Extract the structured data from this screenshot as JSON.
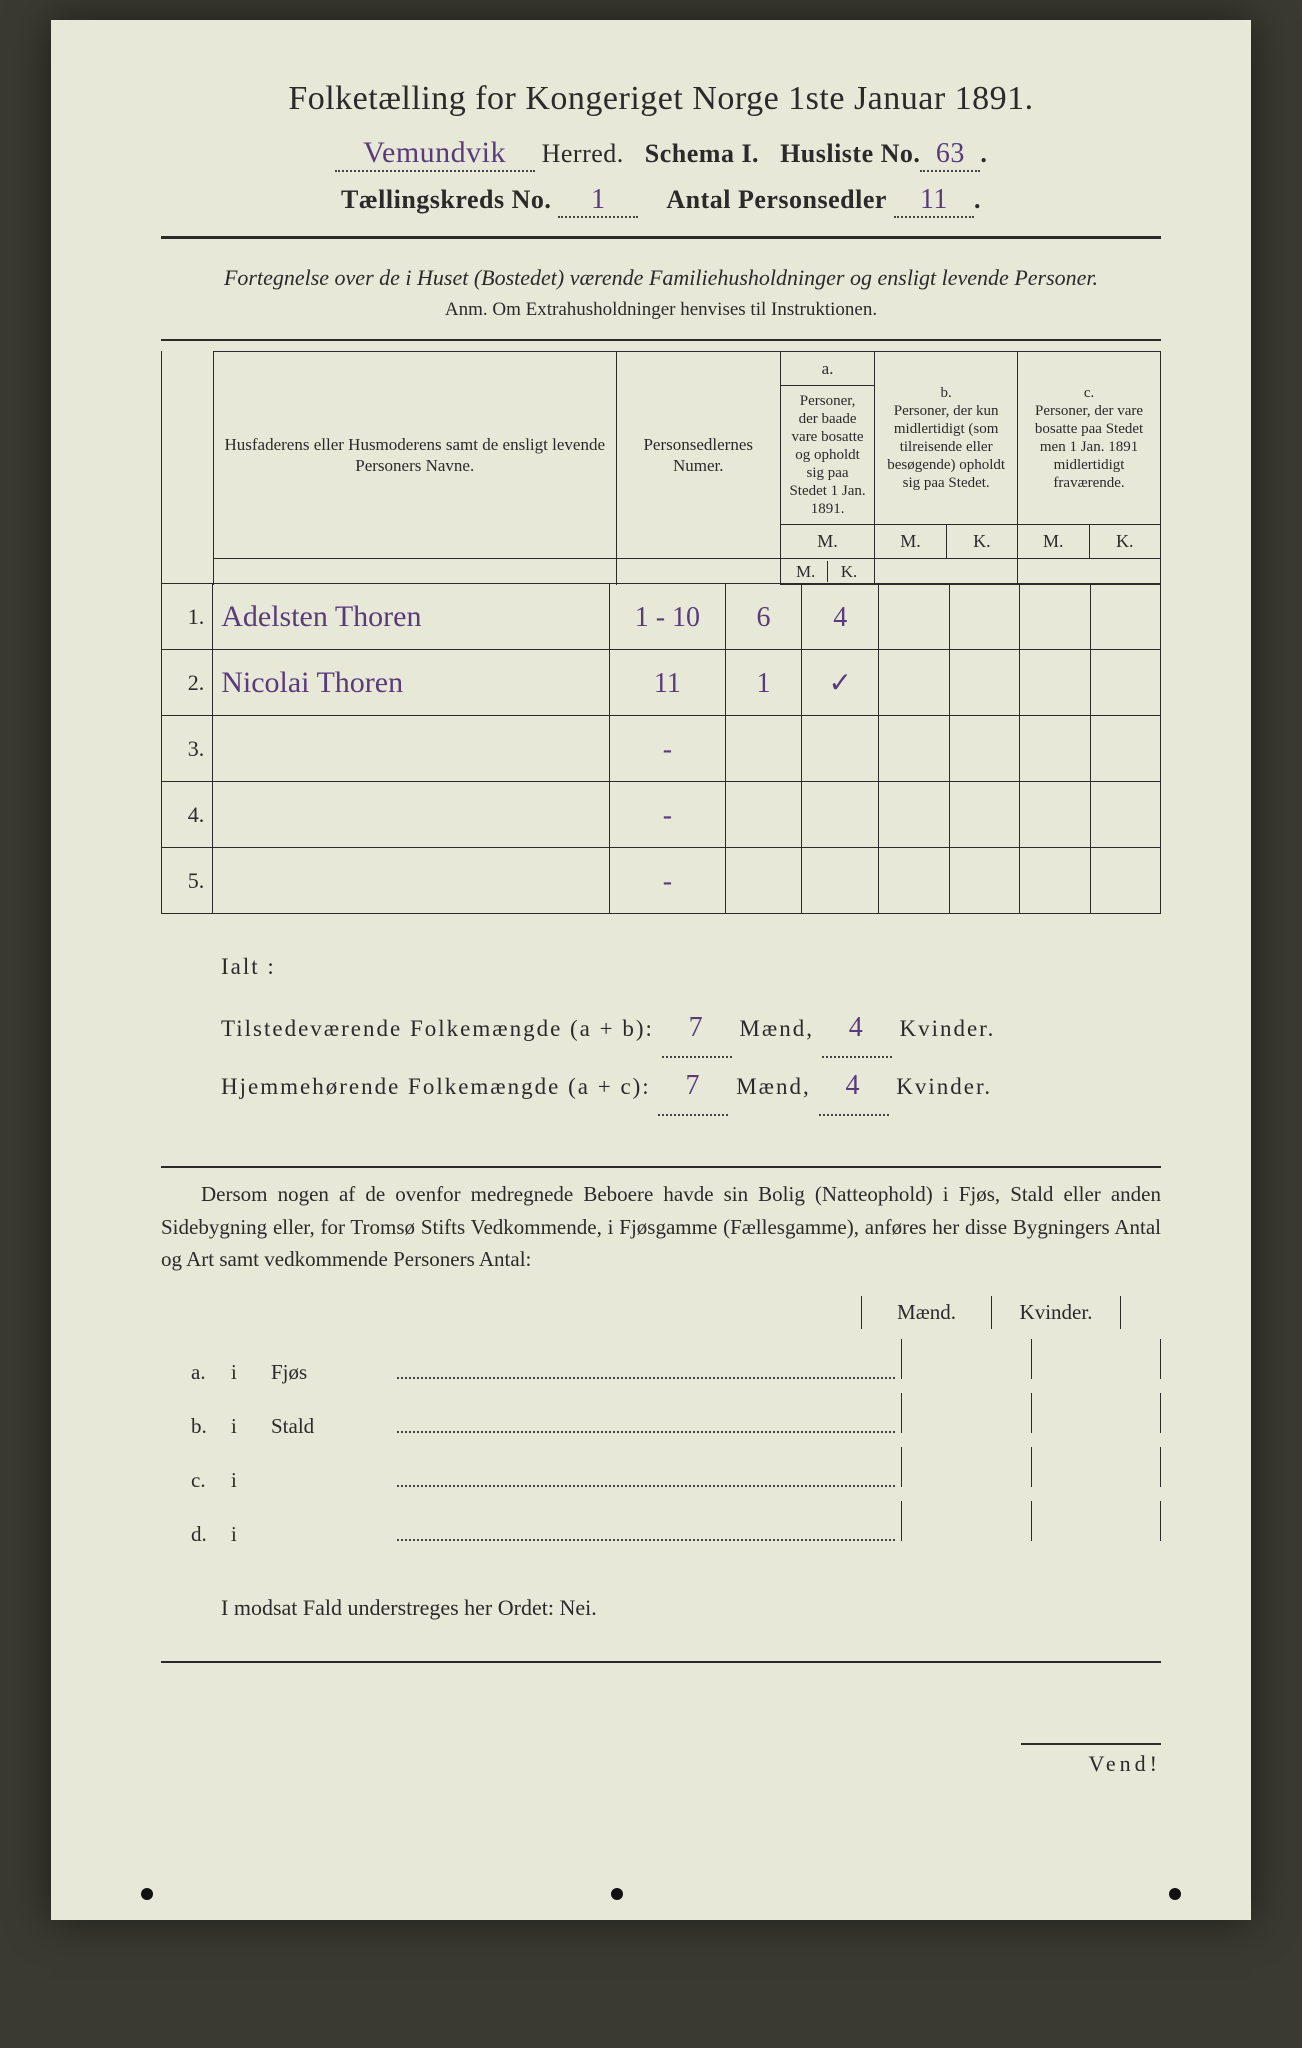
{
  "title": "Folketælling for Kongeriget Norge 1ste Januar 1891.",
  "header": {
    "herred_hand": "Vemundvik",
    "herred_label": "Herred.",
    "schema_label": "Schema I.",
    "husliste_label": "Husliste No.",
    "husliste_no": "63",
    "kreds_label": "Tællingskreds No.",
    "kreds_no": "1",
    "antal_label": "Antal Personsedler",
    "antal_no": "11"
  },
  "subtitle": "Fortegnelse over de i Huset (Bostedet) værende Familiehusholdninger og ensligt levende Personer.",
  "anm": "Anm. Om Extrahusholdninger henvises til Instruktionen.",
  "table": {
    "col1": "Husfaderens eller Husmoderens samt de ensligt levende Personers Navne.",
    "col2": "Personsedlernes Numer.",
    "col_a_top": "a.",
    "col_a": "Personer, der baade vare bosatte og opholdt sig paa Stedet 1 Jan. 1891.",
    "col_b_top": "b.",
    "col_b": "Personer, der kun midlertidigt (som tilreisende eller besøgende) opholdt sig paa Stedet.",
    "col_c_top": "c.",
    "col_c": "Personer, der vare bosatte paa Stedet men 1 Jan. 1891 midlertidigt fraværende.",
    "M": "M.",
    "K": "K.",
    "rows": [
      {
        "n": "1.",
        "name": "Adelsten Thoren",
        "num": "1 - 10",
        "aM": "6",
        "aK": "4",
        "bM": "",
        "bK": "",
        "cM": "",
        "cK": ""
      },
      {
        "n": "2.",
        "name": "Nicolai Thoren",
        "num": "11",
        "aM": "1",
        "aK": "✓",
        "bM": "",
        "bK": "",
        "cM": "",
        "cK": ""
      },
      {
        "n": "3.",
        "name": "",
        "num": "-",
        "aM": "",
        "aK": "",
        "bM": "",
        "bK": "",
        "cM": "",
        "cK": ""
      },
      {
        "n": "4.",
        "name": "",
        "num": "-",
        "aM": "",
        "aK": "",
        "bM": "",
        "bK": "",
        "cM": "",
        "cK": ""
      },
      {
        "n": "5.",
        "name": "",
        "num": "-",
        "aM": "",
        "aK": "",
        "bM": "",
        "bK": "",
        "cM": "",
        "cK": ""
      }
    ]
  },
  "ialt": {
    "ialt_label": "Ialt :",
    "line1_label": "Tilstedeværende Folkemængde (a + b):",
    "line2_label": "Hjemmehørende Folkemængde (a + c):",
    "maend": "Mænd,",
    "kvinder": "Kvinder.",
    "v1m": "7",
    "v1k": "4",
    "v2m": "7",
    "v2k": "4"
  },
  "para": "Dersom nogen af de ovenfor medregnede Beboere havde sin Bolig (Natteophold) i Fjøs, Stald eller anden Sidebygning eller, for Tromsø Stifts Vedkommende, i Fjøsgamme (Fællesgamme), anføres her disse Bygningers Antal og Art samt vedkommende Personers Antal:",
  "subhdr": {
    "m": "Mænd.",
    "k": "Kvinder."
  },
  "sublist": [
    {
      "letter": "a.",
      "i": "i",
      "what": "Fjøs"
    },
    {
      "letter": "b.",
      "i": "i",
      "what": "Stald"
    },
    {
      "letter": "c.",
      "i": "i",
      "what": ""
    },
    {
      "letter": "d.",
      "i": "i",
      "what": ""
    }
  ],
  "nei": "I modsat Fald understreges her Ordet: Nei.",
  "vend": "Vend!",
  "colors": {
    "page_bg": "#e8e8d8",
    "ink": "#2a2a2a",
    "hand_ink": "#5a3b7a",
    "outer_bg": "#3a3a32"
  },
  "fonts": {
    "body": "Georgia serif",
    "hand": "Brush Script cursive",
    "title_pt": 34,
    "header_pt": 26,
    "table_head_pt": 17,
    "body_pt": 21
  }
}
